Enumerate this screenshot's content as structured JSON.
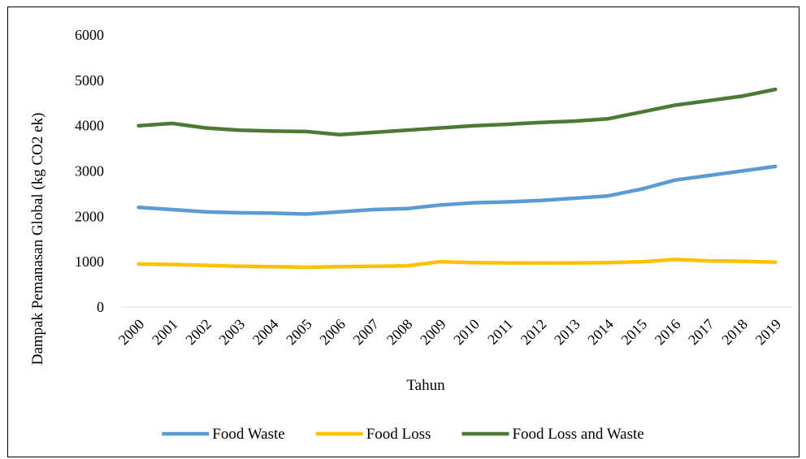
{
  "chart_data": {
    "type": "line",
    "title": "",
    "xlabel": "Tahun",
    "ylabel": "Dampak Pemanasan Global (kg CO2 ek)",
    "x": [
      "2000",
      "2001",
      "2002",
      "2003",
      "2004",
      "2005",
      "2006",
      "2007",
      "2008",
      "2009",
      "2010",
      "2011",
      "2012",
      "2013",
      "2014",
      "2015",
      "2016",
      "2017",
      "2018",
      "2019"
    ],
    "ylim": [
      0,
      6000
    ],
    "yticks": [
      "0",
      "1000",
      "2000",
      "3000",
      "4000",
      "5000",
      "6000"
    ],
    "ytick_values": [
      0,
      1000,
      2000,
      3000,
      4000,
      5000,
      6000
    ],
    "grid": false,
    "legend_position": "bottom",
    "series": [
      {
        "name": "Food Waste",
        "color": "#5b9bd5",
        "values": [
          2200,
          2150,
          2100,
          2080,
          2070,
          2050,
          2100,
          2150,
          2170,
          2250,
          2300,
          2320,
          2350,
          2400,
          2450,
          2600,
          2800,
          2900,
          3000,
          3100
        ]
      },
      {
        "name": "Food Loss",
        "color": "#ffc000",
        "values": [
          950,
          940,
          920,
          900,
          890,
          880,
          890,
          900,
          910,
          1000,
          980,
          975,
          970,
          975,
          980,
          1000,
          1050,
          1020,
          1010,
          990
        ]
      },
      {
        "name": "Food Loss and Waste",
        "color": "#4a7a34",
        "values": [
          4000,
          4050,
          3950,
          3900,
          3880,
          3870,
          3800,
          3850,
          3900,
          3950,
          4000,
          4030,
          4070,
          4100,
          4150,
          4300,
          4450,
          4550,
          4650,
          4800
        ]
      }
    ]
  }
}
